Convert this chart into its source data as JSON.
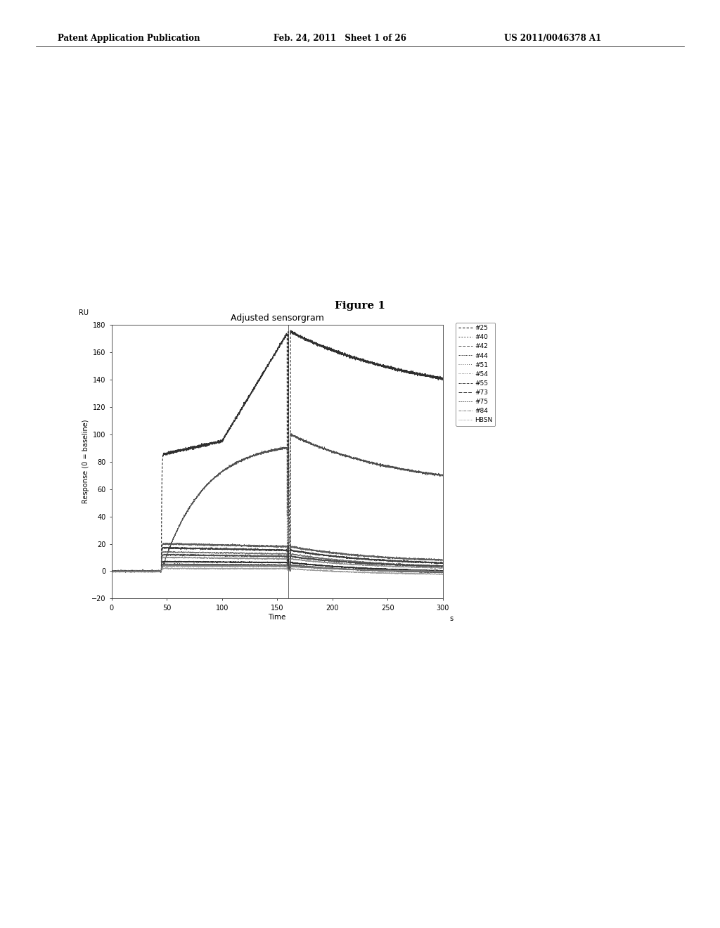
{
  "title_figure": "Figure 1",
  "title_chart": "Adjusted sensorgram",
  "xlabel": "Time",
  "ylabel": "Response (0 = baseline)",
  "xlabel_unit": "s",
  "ylabel_unit": "RU",
  "xlim": [
    0,
    300
  ],
  "ylim": [
    -20,
    180
  ],
  "xticks": [
    0,
    50,
    100,
    150,
    200,
    250,
    300
  ],
  "yticks": [
    -20,
    0,
    20,
    40,
    60,
    80,
    100,
    120,
    140,
    160,
    180
  ],
  "legend_labels": [
    "#25",
    "#40",
    "#42",
    "#44",
    "#51",
    "#54",
    "#55",
    "#73",
    "#75",
    "#84",
    "HBSN"
  ],
  "header_left": "Patent Application Publication",
  "header_mid": "Feb. 24, 2011   Sheet 1 of 26",
  "header_right": "US 2011/0046378 A1",
  "bg_color": "#ffffff",
  "spike_x": 160,
  "assoc_start": 45
}
